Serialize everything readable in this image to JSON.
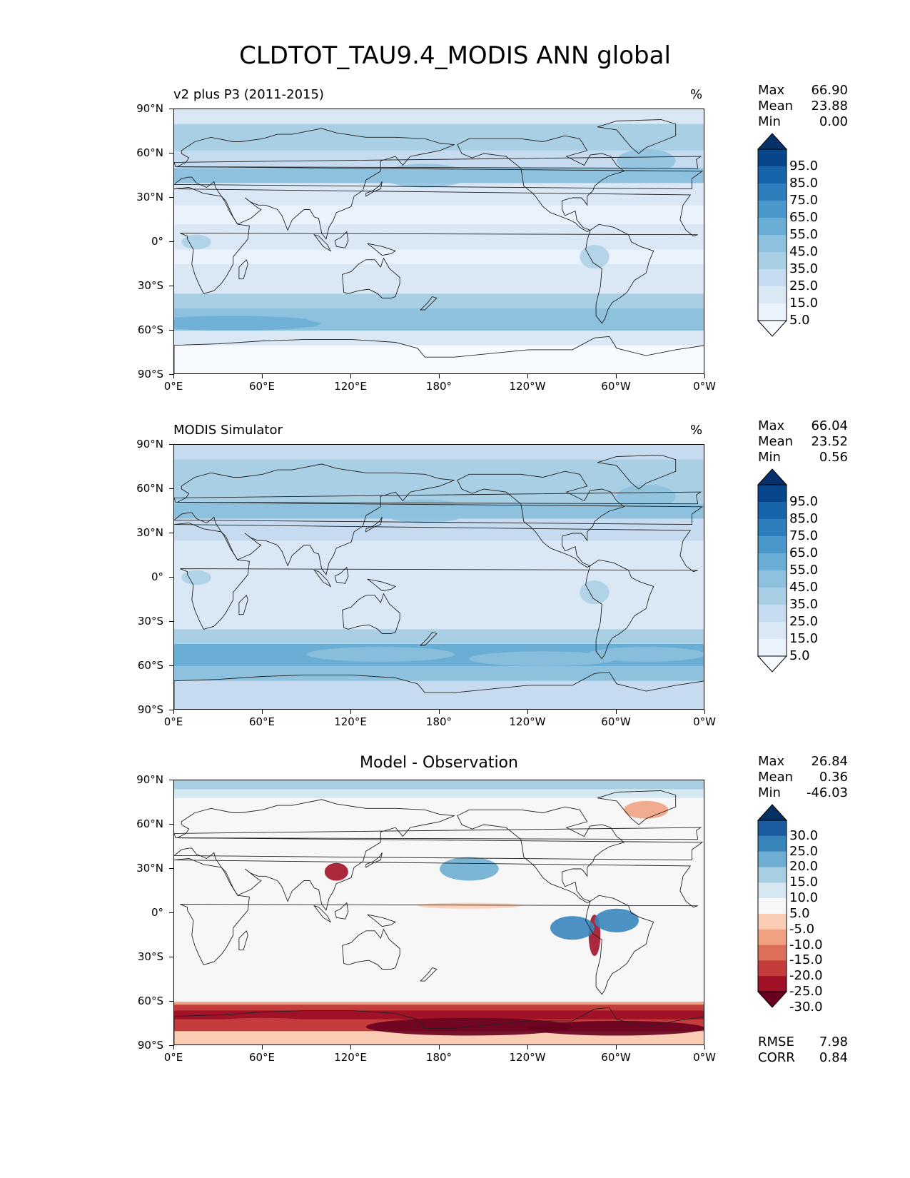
{
  "title": "CLDTOT_TAU9.4_MODIS ANN global",
  "x_ticks": [
    "0°E",
    "60°E",
    "120°E",
    "180°",
    "120°W",
    "60°W",
    "0°W"
  ],
  "y_ticks": [
    "90°N",
    "60°N",
    "30°N",
    "0°",
    "30°S",
    "60°S",
    "90°S"
  ],
  "stat_labels": {
    "max": "Max",
    "mean": "Mean",
    "min": "Min",
    "rmse": "RMSE",
    "corr": "CORR"
  },
  "panels": [
    {
      "title": "v2 plus P3 (2011-2015)",
      "units": "%",
      "stats": {
        "max": "66.90",
        "mean": "23.88",
        "min": "0.00"
      },
      "colorbar": {
        "labels": [
          "95.0",
          "85.0",
          "75.0",
          "65.0",
          "55.0",
          "45.0",
          "35.0",
          "25.0",
          "15.0",
          "5.0"
        ],
        "colors": [
          "#f7fbff",
          "#eaf2fb",
          "#dae8f6",
          "#c6dbef",
          "#a9cfe5",
          "#8dc1dd",
          "#6aaed6",
          "#4a98c9",
          "#2e7ebc",
          "#1764ab",
          "#08468b",
          "#08306b"
        ]
      }
    },
    {
      "title": "MODIS Simulator",
      "units": "%",
      "stats": {
        "max": "66.04",
        "mean": "23.52",
        "min": "0.56"
      },
      "colorbar": {
        "labels": [
          "95.0",
          "85.0",
          "75.0",
          "65.0",
          "55.0",
          "45.0",
          "35.0",
          "25.0",
          "15.0",
          "5.0"
        ],
        "colors": [
          "#f7fbff",
          "#eaf2fb",
          "#dae8f6",
          "#c6dbef",
          "#a9cfe5",
          "#8dc1dd",
          "#6aaed6",
          "#4a98c9",
          "#2e7ebc",
          "#1764ab",
          "#08468b",
          "#08306b"
        ]
      }
    },
    {
      "title": "Model - Observation",
      "units": "",
      "stats": {
        "max": "26.84",
        "mean": "0.36",
        "min": "-46.03",
        "rmse": "7.98",
        "corr": "0.84"
      },
      "colorbar": {
        "labels": [
          "30.0",
          "25.0",
          "20.0",
          "15.0",
          "10.0",
          "5.0",
          "-5.0",
          "-10.0",
          "-15.0",
          "-20.0",
          "-25.0",
          "-30.0"
        ],
        "colors": [
          "#67001f",
          "#a11228",
          "#c43c3c",
          "#dd6f58",
          "#f0a283",
          "#fbcdb4",
          "#f7f7f7",
          "#d5e7f1",
          "#a7cfe4",
          "#6eaed2",
          "#3885bc",
          "#1a5c9e",
          "#053061"
        ]
      }
    }
  ]
}
